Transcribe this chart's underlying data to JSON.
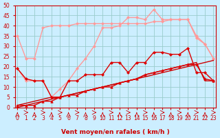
{
  "series": [
    {
      "name": "rafales_flat",
      "color": "#ff9999",
      "marker": "D",
      "markersize": 2,
      "linewidth": 1.0,
      "y": [
        35,
        24,
        24,
        39,
        40,
        40,
        40,
        41,
        41,
        41,
        41,
        41,
        41,
        41,
        41,
        41,
        42,
        42,
        43,
        43,
        43,
        34,
        31,
        24
      ]
    },
    {
      "name": "rafales_peak",
      "color": "#ff9999",
      "marker": "D",
      "markersize": 2,
      "linewidth": 1.0,
      "y": [
        19,
        13,
        13,
        13,
        5,
        9,
        13,
        19,
        24,
        30,
        39,
        39,
        40,
        44,
        44,
        43,
        48,
        43,
        43,
        43,
        43,
        35,
        31,
        24
      ]
    },
    {
      "name": "vent_linear1",
      "color": "#cc0000",
      "marker": null,
      "markersize": 0,
      "linewidth": 1.0,
      "y": [
        0,
        1,
        2,
        3,
        4,
        5,
        6,
        7,
        8,
        9,
        10,
        11,
        12,
        13,
        14,
        15,
        16,
        17,
        18,
        19,
        20,
        21,
        22,
        23
      ]
    },
    {
      "name": "vent_linear2",
      "color": "#cc0000",
      "marker": null,
      "markersize": 0,
      "linewidth": 1.0,
      "y": [
        1,
        2,
        3,
        4,
        5,
        5,
        6,
        7,
        8,
        9,
        10,
        11,
        12,
        13,
        14,
        16,
        17,
        18,
        19,
        20,
        21,
        22,
        13,
        13
      ]
    },
    {
      "name": "vent_moyen3",
      "color": "#dd0000",
      "marker": "D",
      "markersize": 2,
      "linewidth": 1.0,
      "y": [
        19,
        14,
        13,
        13,
        5,
        5,
        13,
        13,
        16,
        16,
        16,
        22,
        22,
        17,
        22,
        22,
        27,
        27,
        26,
        26,
        29,
        17,
        17,
        13
      ]
    },
    {
      "name": "vent_moyen4",
      "color": "#dd0000",
      "marker": "^",
      "markersize": 2.5,
      "linewidth": 1.0,
      "y": [
        1,
        1,
        1,
        3,
        3,
        5,
        6,
        6,
        8,
        9,
        10,
        10,
        12,
        13,
        14,
        16,
        17,
        18,
        19,
        20,
        21,
        21,
        14,
        13
      ]
    }
  ],
  "xlim": [
    0,
    23
  ],
  "ylim": [
    0,
    50
  ],
  "yticks": [
    0,
    5,
    10,
    15,
    20,
    25,
    30,
    35,
    40,
    45,
    50
  ],
  "xticks": [
    0,
    1,
    2,
    3,
    4,
    5,
    6,
    7,
    8,
    9,
    10,
    11,
    12,
    13,
    14,
    15,
    16,
    17,
    18,
    19,
    20,
    21,
    22,
    23
  ],
  "xlabel": "Vent moyen/en rafales ( km/h )",
  "bgcolor": "#cceeff",
  "grid_color": "#99cccc",
  "axis_color": "#cc0000",
  "arrow_color": "#cc0000",
  "label_fontsize": 6.5,
  "tick_fontsize": 5.5
}
